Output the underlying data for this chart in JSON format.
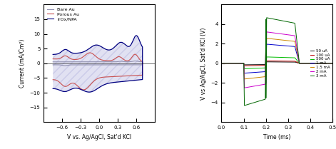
{
  "left": {
    "xlim": [
      -0.9,
      0.9
    ],
    "ylim": [
      -20,
      20
    ],
    "xticks": [
      -0.6,
      -0.3,
      0.0,
      0.3,
      0.6
    ],
    "yticks": [
      -15,
      -10,
      -5,
      0,
      5,
      10,
      15
    ],
    "xlabel": "V vs. Ag/AgCl, Sat'd KCl",
    "ylabel": "Current (mA/Cm²)",
    "legend": [
      "Bare Au",
      "Porous Au",
      "IrOx/NPA"
    ],
    "bare_au_color": "#9090b0",
    "porous_au_color": "#c85050",
    "irox_npa_color": "#000080",
    "hatch_color": "#8888cc",
    "hatch_alpha": 0.25
  },
  "right": {
    "xlim": [
      0.0,
      0.5
    ],
    "ylim": [
      -6,
      6
    ],
    "xticks": [
      0.0,
      0.1,
      0.2,
      0.3,
      0.4,
      0.5
    ],
    "yticks": [
      -4,
      -2,
      0,
      2,
      4
    ],
    "xlabel": "Time (ms)",
    "ylabel": "V vs Ag/AgCl, Sat'd KCl (V)",
    "legend_labels": [
      "50 uA",
      "100 uA",
      "500 uA",
      "1 mA",
      "1.5 mA",
      "2 mA",
      "3 mA"
    ],
    "legend_colors": [
      "#111111",
      "#bb0000",
      "#00bb00",
      "#0000cc",
      "#cc8800",
      "#cc00cc",
      "#006600"
    ],
    "neg_peaks": [
      -0.15,
      -0.25,
      -0.55,
      -1.0,
      -1.6,
      -2.5,
      -4.3
    ],
    "pos_peaks": [
      0.15,
      0.25,
      0.65,
      1.95,
      2.55,
      3.2,
      4.65
    ]
  }
}
